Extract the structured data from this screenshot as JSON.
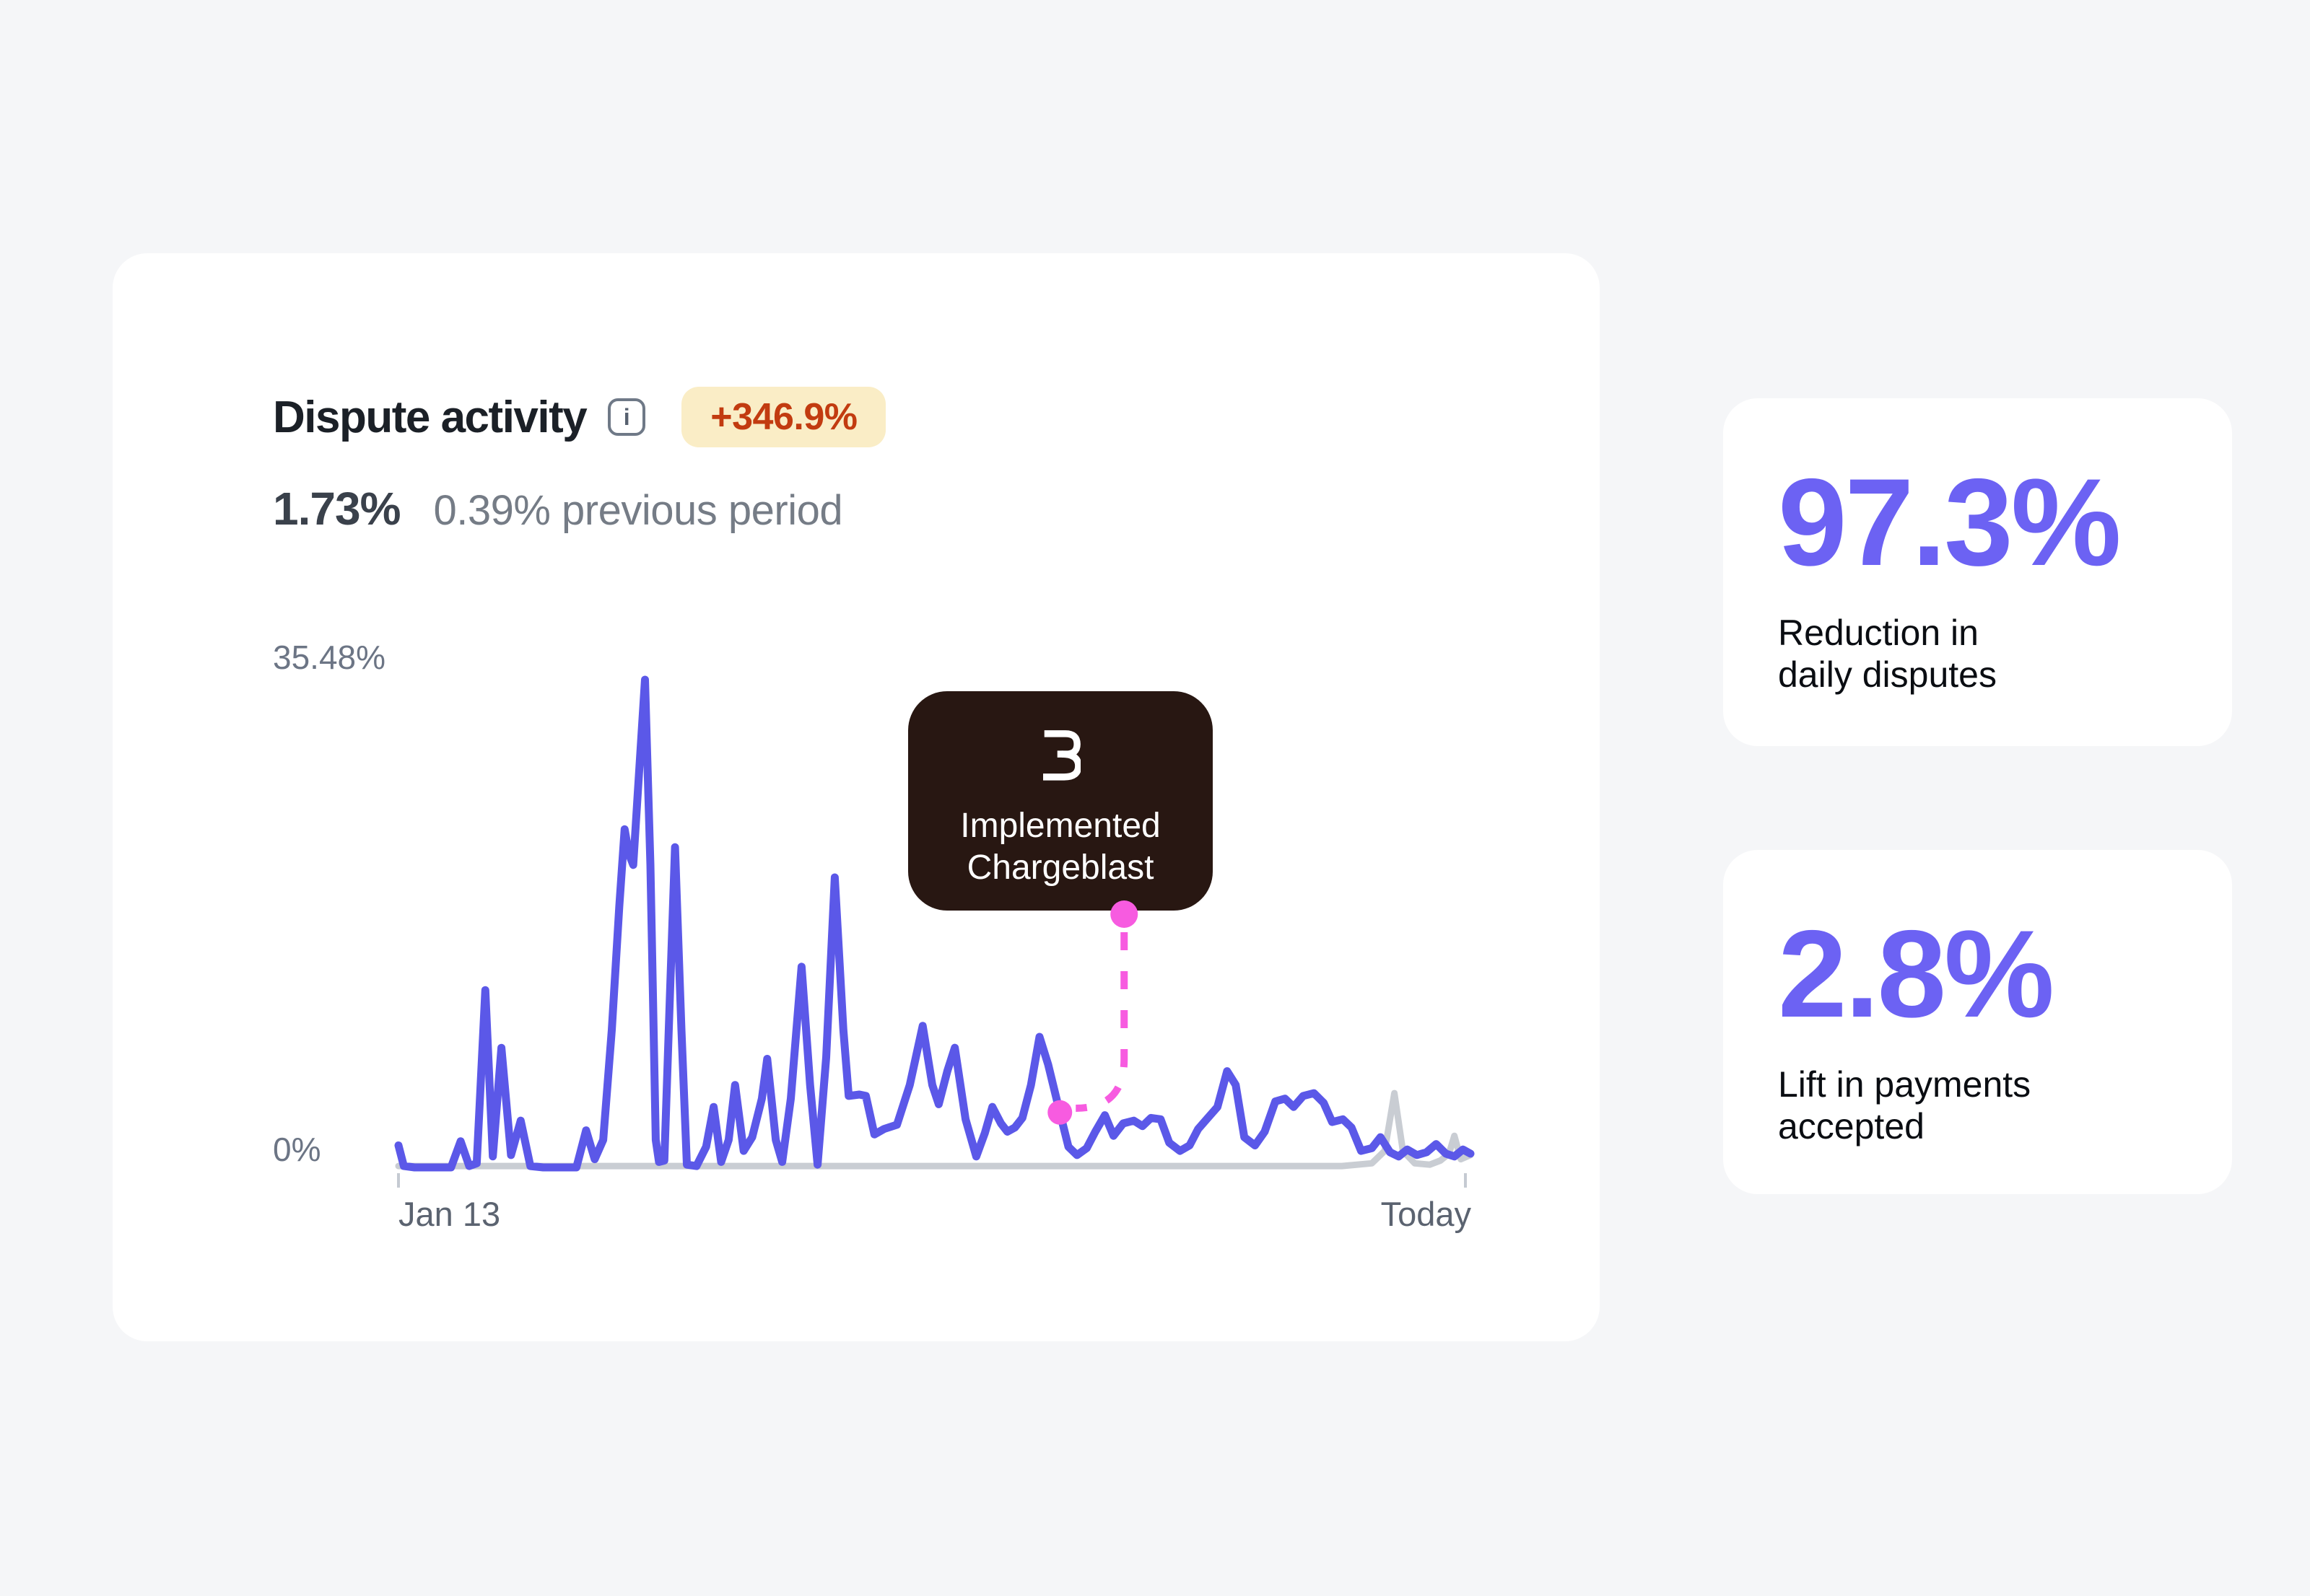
{
  "dispute_card": {
    "title": "Dispute activity",
    "info_icon_glyph": "i",
    "badge": "+346.9%",
    "current_value": "1.73%",
    "previous_value": "0.39% previous period"
  },
  "stats": [
    {
      "value": "97.3%",
      "label_lines": [
        "Reduction in",
        "daily disputes"
      ]
    },
    {
      "value": "2.8%",
      "label_lines": [
        "Lift in payments",
        "accepted"
      ]
    }
  ],
  "colors": {
    "page_bg": "#F5F6F8",
    "card_bg": "#FFFFFF",
    "title_text": "#1B2027",
    "value_text": "#3A414B",
    "muted_text": "#757C86",
    "axis_text": "#6C7585",
    "date_text": "#5B6370",
    "badge_bg": "#FAEDC6",
    "badge_text": "#C23B10",
    "line_current": "#5B58E8",
    "line_previous": "#C9CDD3",
    "marker_magenta": "#F75BE0",
    "tooltip_bg": "#281712",
    "tooltip_text": "#FFFFFF",
    "stat_number": "#6C62F3",
    "stat_label": "#0A0D12",
    "tick": "#C5CAD2"
  },
  "chart_data": {
    "type": "line",
    "title": "Dispute activity",
    "ylim": [
      0,
      35.48
    ],
    "y_tick_labels": [
      "35.48%",
      "0%"
    ],
    "x_tick_labels": [
      "Jan 13",
      "Today"
    ],
    "grid": false,
    "legend": "none",
    "annotation": {
      "label_lines": [
        "Implemented",
        "Chargeblast"
      ],
      "x": 61.7,
      "y": 4.0
    },
    "series": [
      {
        "name": "previous-period",
        "color": "#C9CDD3",
        "width": 9,
        "points": [
          [
            0,
            0.1
          ],
          [
            20,
            0.1
          ],
          [
            40,
            0.1
          ],
          [
            60,
            0.1
          ],
          [
            75,
            0.1
          ],
          [
            88,
            0.1
          ],
          [
            90.8,
            0.3
          ],
          [
            92.0,
            1.2
          ],
          [
            92.9,
            5.4
          ],
          [
            93.7,
            1.2
          ],
          [
            94.8,
            0.3
          ],
          [
            96.2,
            0.2
          ],
          [
            97.2,
            0.5
          ],
          [
            98.0,
            1.0
          ],
          [
            98.5,
            2.3
          ],
          [
            99.1,
            0.6
          ],
          [
            100,
            0.9
          ]
        ]
      },
      {
        "name": "current-period",
        "color": "#5B58E8",
        "width": 11,
        "points": [
          [
            0,
            1.6
          ],
          [
            0.5,
            0.1
          ],
          [
            1.5,
            0
          ],
          [
            4.9,
            0
          ],
          [
            5.8,
            1.9
          ],
          [
            6.6,
            0.1
          ],
          [
            7.3,
            0.3
          ],
          [
            8.1,
            12.9
          ],
          [
            8.8,
            0.8
          ],
          [
            9.6,
            8.7
          ],
          [
            10.5,
            0.9
          ],
          [
            11.4,
            3.4
          ],
          [
            12.3,
            0.1
          ],
          [
            13.5,
            0
          ],
          [
            16.6,
            0
          ],
          [
            17.5,
            2.7
          ],
          [
            18.3,
            0.6
          ],
          [
            19.1,
            2.0
          ],
          [
            19.9,
            10
          ],
          [
            20.6,
            19
          ],
          [
            21.1,
            24.6
          ],
          [
            21.5,
            22.8
          ],
          [
            21.9,
            22.0
          ],
          [
            22.3,
            27
          ],
          [
            23.0,
            35.48
          ],
          [
            23.5,
            22
          ],
          [
            24.0,
            2
          ],
          [
            24.3,
            0.4
          ],
          [
            24.8,
            0.5
          ],
          [
            25.3,
            12
          ],
          [
            25.8,
            23.3
          ],
          [
            26.4,
            10
          ],
          [
            26.9,
            0.2
          ],
          [
            27.8,
            0.1
          ],
          [
            28.7,
            1.5
          ],
          [
            29.4,
            4.4
          ],
          [
            30.1,
            0.4
          ],
          [
            30.8,
            2.0
          ],
          [
            31.4,
            6.0
          ],
          [
            32.2,
            1.2
          ],
          [
            33.0,
            2.2
          ],
          [
            33.9,
            5.0
          ],
          [
            34.4,
            7.9
          ],
          [
            35.2,
            2.0
          ],
          [
            35.8,
            0.4
          ],
          [
            36.6,
            5.0
          ],
          [
            37.6,
            14.6
          ],
          [
            38.4,
            6.0
          ],
          [
            39.1,
            0.2
          ],
          [
            39.9,
            8.0
          ],
          [
            40.7,
            21.1
          ],
          [
            41.5,
            10
          ],
          [
            42.0,
            5.2
          ],
          [
            43.0,
            5.3
          ],
          [
            43.6,
            5.2
          ],
          [
            44.4,
            2.4
          ],
          [
            45.3,
            2.8
          ],
          [
            46.5,
            3.1
          ],
          [
            47.7,
            6.0
          ],
          [
            48.9,
            10.3
          ],
          [
            49.8,
            6.0
          ],
          [
            50.4,
            4.6
          ],
          [
            51.2,
            7.0
          ],
          [
            51.9,
            8.7
          ],
          [
            52.9,
            3.5
          ],
          [
            53.9,
            0.8
          ],
          [
            54.7,
            2.5
          ],
          [
            55.4,
            4.4
          ],
          [
            56.2,
            3.2
          ],
          [
            56.8,
            2.6
          ],
          [
            57.5,
            2.9
          ],
          [
            58.2,
            3.6
          ],
          [
            59.0,
            6.0
          ],
          [
            59.8,
            9.5
          ],
          [
            60.6,
            7.5
          ],
          [
            61.7,
            4.0
          ],
          [
            62.5,
            1.5
          ],
          [
            63.3,
            0.9
          ],
          [
            64.2,
            1.4
          ],
          [
            65.0,
            2.6
          ],
          [
            65.9,
            3.8
          ],
          [
            66.7,
            2.3
          ],
          [
            67.6,
            3.2
          ],
          [
            68.6,
            3.4
          ],
          [
            69.4,
            3.0
          ],
          [
            70.2,
            3.6
          ],
          [
            71.1,
            3.5
          ],
          [
            71.9,
            1.8
          ],
          [
            72.9,
            1.2
          ],
          [
            73.8,
            1.6
          ],
          [
            74.6,
            2.8
          ],
          [
            75.5,
            3.6
          ],
          [
            76.4,
            4.4
          ],
          [
            77.3,
            7.0
          ],
          [
            78.1,
            6.0
          ],
          [
            78.9,
            2.2
          ],
          [
            79.9,
            1.6
          ],
          [
            80.8,
            2.6
          ],
          [
            81.8,
            4.8
          ],
          [
            82.7,
            5.0
          ],
          [
            83.5,
            4.4
          ],
          [
            84.4,
            5.2
          ],
          [
            85.4,
            5.4
          ],
          [
            86.3,
            4.7
          ],
          [
            87.1,
            3.3
          ],
          [
            88.1,
            3.5
          ],
          [
            88.9,
            2.9
          ],
          [
            89.8,
            1.2
          ],
          [
            90.8,
            1.4
          ],
          [
            91.6,
            2.2
          ],
          [
            92.5,
            1.1
          ],
          [
            93.3,
            0.8
          ],
          [
            94.1,
            1.3
          ],
          [
            95.0,
            0.9
          ],
          [
            95.9,
            1.1
          ],
          [
            96.8,
            1.7
          ],
          [
            97.7,
            1.0
          ],
          [
            98.5,
            0.8
          ],
          [
            99.3,
            1.3
          ],
          [
            100,
            1.0
          ]
        ]
      }
    ]
  }
}
